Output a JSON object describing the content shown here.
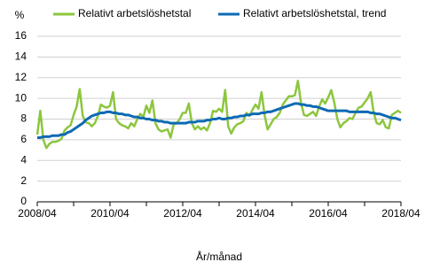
{
  "chart_data": {
    "type": "line",
    "y_unit": "%",
    "x_label": "År/månad",
    "categories": [
      "2008/04",
      null,
      null,
      null,
      null,
      null,
      null,
      null,
      null,
      null,
      null,
      null,
      null,
      null,
      null,
      null,
      null,
      null,
      null,
      null,
      null,
      null,
      null,
      null,
      "2010/04",
      null,
      null,
      null,
      null,
      null,
      null,
      null,
      null,
      null,
      null,
      null,
      null,
      null,
      null,
      null,
      null,
      null,
      null,
      null,
      null,
      null,
      null,
      null,
      "2012/04",
      null,
      null,
      null,
      null,
      null,
      null,
      null,
      null,
      null,
      null,
      null,
      null,
      null,
      null,
      null,
      null,
      null,
      null,
      null,
      null,
      null,
      null,
      null,
      "2014/04",
      null,
      null,
      null,
      null,
      null,
      null,
      null,
      null,
      null,
      null,
      null,
      null,
      null,
      null,
      null,
      null,
      null,
      null,
      null,
      null,
      null,
      null,
      null,
      "2016/04",
      null,
      null,
      null,
      null,
      null,
      null,
      null,
      null,
      null,
      null,
      null,
      null,
      null,
      null,
      null,
      null,
      null,
      null,
      null,
      null,
      null,
      null,
      null,
      "2018/04"
    ],
    "series": [
      {
        "name": "Relativt arbetslöshetstal",
        "color": "#8cc63e",
        "values": [
          6.5,
          8.8,
          6.0,
          5.2,
          5.6,
          5.8,
          5.8,
          5.9,
          6.1,
          6.9,
          7.2,
          7.4,
          8.4,
          9.2,
          10.9,
          8.3,
          7.7,
          7.6,
          7.3,
          7.6,
          8.3,
          9.4,
          9.2,
          9.1,
          9.3,
          10.6,
          8.0,
          7.6,
          7.4,
          7.3,
          7.1,
          7.6,
          7.3,
          8.0,
          8.5,
          8.2,
          9.3,
          8.6,
          9.8,
          7.6,
          7.0,
          6.8,
          6.9,
          7.0,
          6.2,
          7.5,
          7.6,
          8.0,
          8.6,
          8.6,
          9.5,
          7.6,
          7.0,
          7.3,
          7.0,
          7.2,
          6.9,
          7.6,
          8.8,
          8.7,
          9.0,
          8.7,
          10.8,
          7.3,
          6.6,
          7.2,
          7.5,
          7.6,
          7.8,
          8.6,
          8.3,
          8.9,
          9.4,
          9.0,
          10.6,
          8.4,
          7.0,
          7.5,
          8.0,
          8.2,
          8.6,
          9.4,
          9.8,
          10.2,
          10.2,
          10.3,
          11.7,
          9.6,
          8.4,
          8.3,
          8.5,
          8.7,
          8.3,
          9.2,
          9.9,
          9.5,
          10.1,
          10.8,
          9.6,
          8.0,
          7.2,
          7.6,
          7.8,
          8.1,
          8.0,
          8.6,
          9.1,
          9.2,
          9.6,
          10.0,
          10.6,
          8.6,
          7.6,
          7.5,
          7.9,
          7.2,
          7.1,
          8.4,
          8.6,
          8.8,
          8.6
        ]
      },
      {
        "name": "Relativt arbetslöshetstal, trend",
        "color": "#0e6ab3",
        "values": [
          6.2,
          6.2,
          6.3,
          6.3,
          6.3,
          6.4,
          6.4,
          6.4,
          6.5,
          6.5,
          6.7,
          6.8,
          7.0,
          7.2,
          7.4,
          7.6,
          7.9,
          8.1,
          8.3,
          8.4,
          8.5,
          8.6,
          8.6,
          8.7,
          8.7,
          8.6,
          8.6,
          8.5,
          8.5,
          8.4,
          8.4,
          8.3,
          8.2,
          8.2,
          8.1,
          8.1,
          8.0,
          8.0,
          7.9,
          7.9,
          7.8,
          7.8,
          7.7,
          7.7,
          7.6,
          7.6,
          7.6,
          7.6,
          7.6,
          7.6,
          7.7,
          7.7,
          7.7,
          7.8,
          7.8,
          7.8,
          7.9,
          7.9,
          8.0,
          8.0,
          8.1,
          8.0,
          8.0,
          8.1,
          8.1,
          8.2,
          8.2,
          8.3,
          8.3,
          8.4,
          8.4,
          8.5,
          8.5,
          8.5,
          8.6,
          8.6,
          8.7,
          8.7,
          8.8,
          8.9,
          9.0,
          9.1,
          9.2,
          9.3,
          9.4,
          9.5,
          9.5,
          9.4,
          9.4,
          9.3,
          9.3,
          9.2,
          9.2,
          9.1,
          9.0,
          8.9,
          8.8,
          8.8,
          8.8,
          8.8,
          8.8,
          8.8,
          8.8,
          8.7,
          8.7,
          8.7,
          8.7,
          8.7,
          8.7,
          8.7,
          8.6,
          8.6,
          8.5,
          8.5,
          8.4,
          8.3,
          8.2,
          8.1,
          8.1,
          8.0,
          7.9
        ]
      }
    ],
    "ylim": [
      0,
      16
    ],
    "yticks": [
      0,
      2,
      4,
      6,
      8,
      10,
      12,
      14,
      16
    ],
    "grid": true
  }
}
